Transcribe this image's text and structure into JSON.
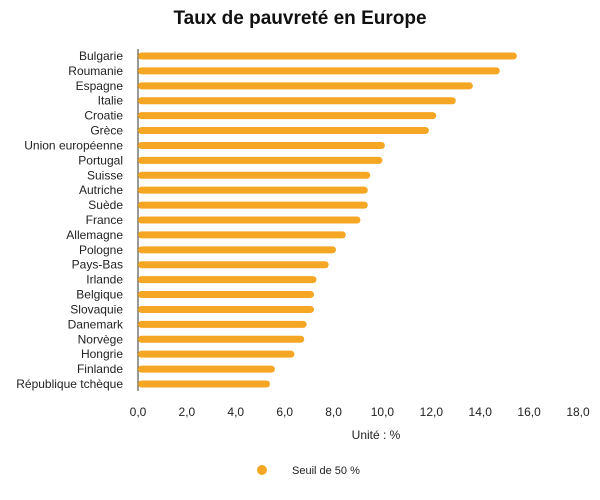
{
  "chart_data": {
    "type": "bar",
    "orientation": "horizontal",
    "title": "Taux de pauvreté en Europe",
    "xlabel": "Unité : %",
    "ylabel": "",
    "xlim": [
      0,
      18
    ],
    "x_ticks": [
      "0,0",
      "2,0",
      "4,0",
      "6,0",
      "8,0",
      "10,0",
      "12,0",
      "14,0",
      "16,0",
      "18,0"
    ],
    "categories": [
      "Bulgarie",
      "Roumanie",
      "Espagne",
      "Italie",
      "Croatie",
      "Grèce",
      "Union européenne",
      "Portugal",
      "Suisse",
      "Autriche",
      "Suède",
      "France",
      "Allemagne",
      "Pologne",
      "Pays-Bas",
      "Irlande",
      "Belgique",
      "Slovaquie",
      "Danemark",
      "Norvège",
      "Hongrie",
      "Finlande",
      "République tchèque"
    ],
    "series": [
      {
        "name": "Seuil de 50 %",
        "color": "#F5A623",
        "values": [
          15.5,
          14.8,
          13.7,
          13.0,
          12.2,
          11.9,
          10.1,
          10.0,
          9.5,
          9.4,
          9.4,
          9.1,
          8.5,
          8.1,
          7.8,
          7.3,
          7.2,
          7.2,
          6.9,
          6.8,
          6.4,
          5.6,
          5.4
        ]
      }
    ],
    "grid": false,
    "legend_position": "bottom"
  }
}
